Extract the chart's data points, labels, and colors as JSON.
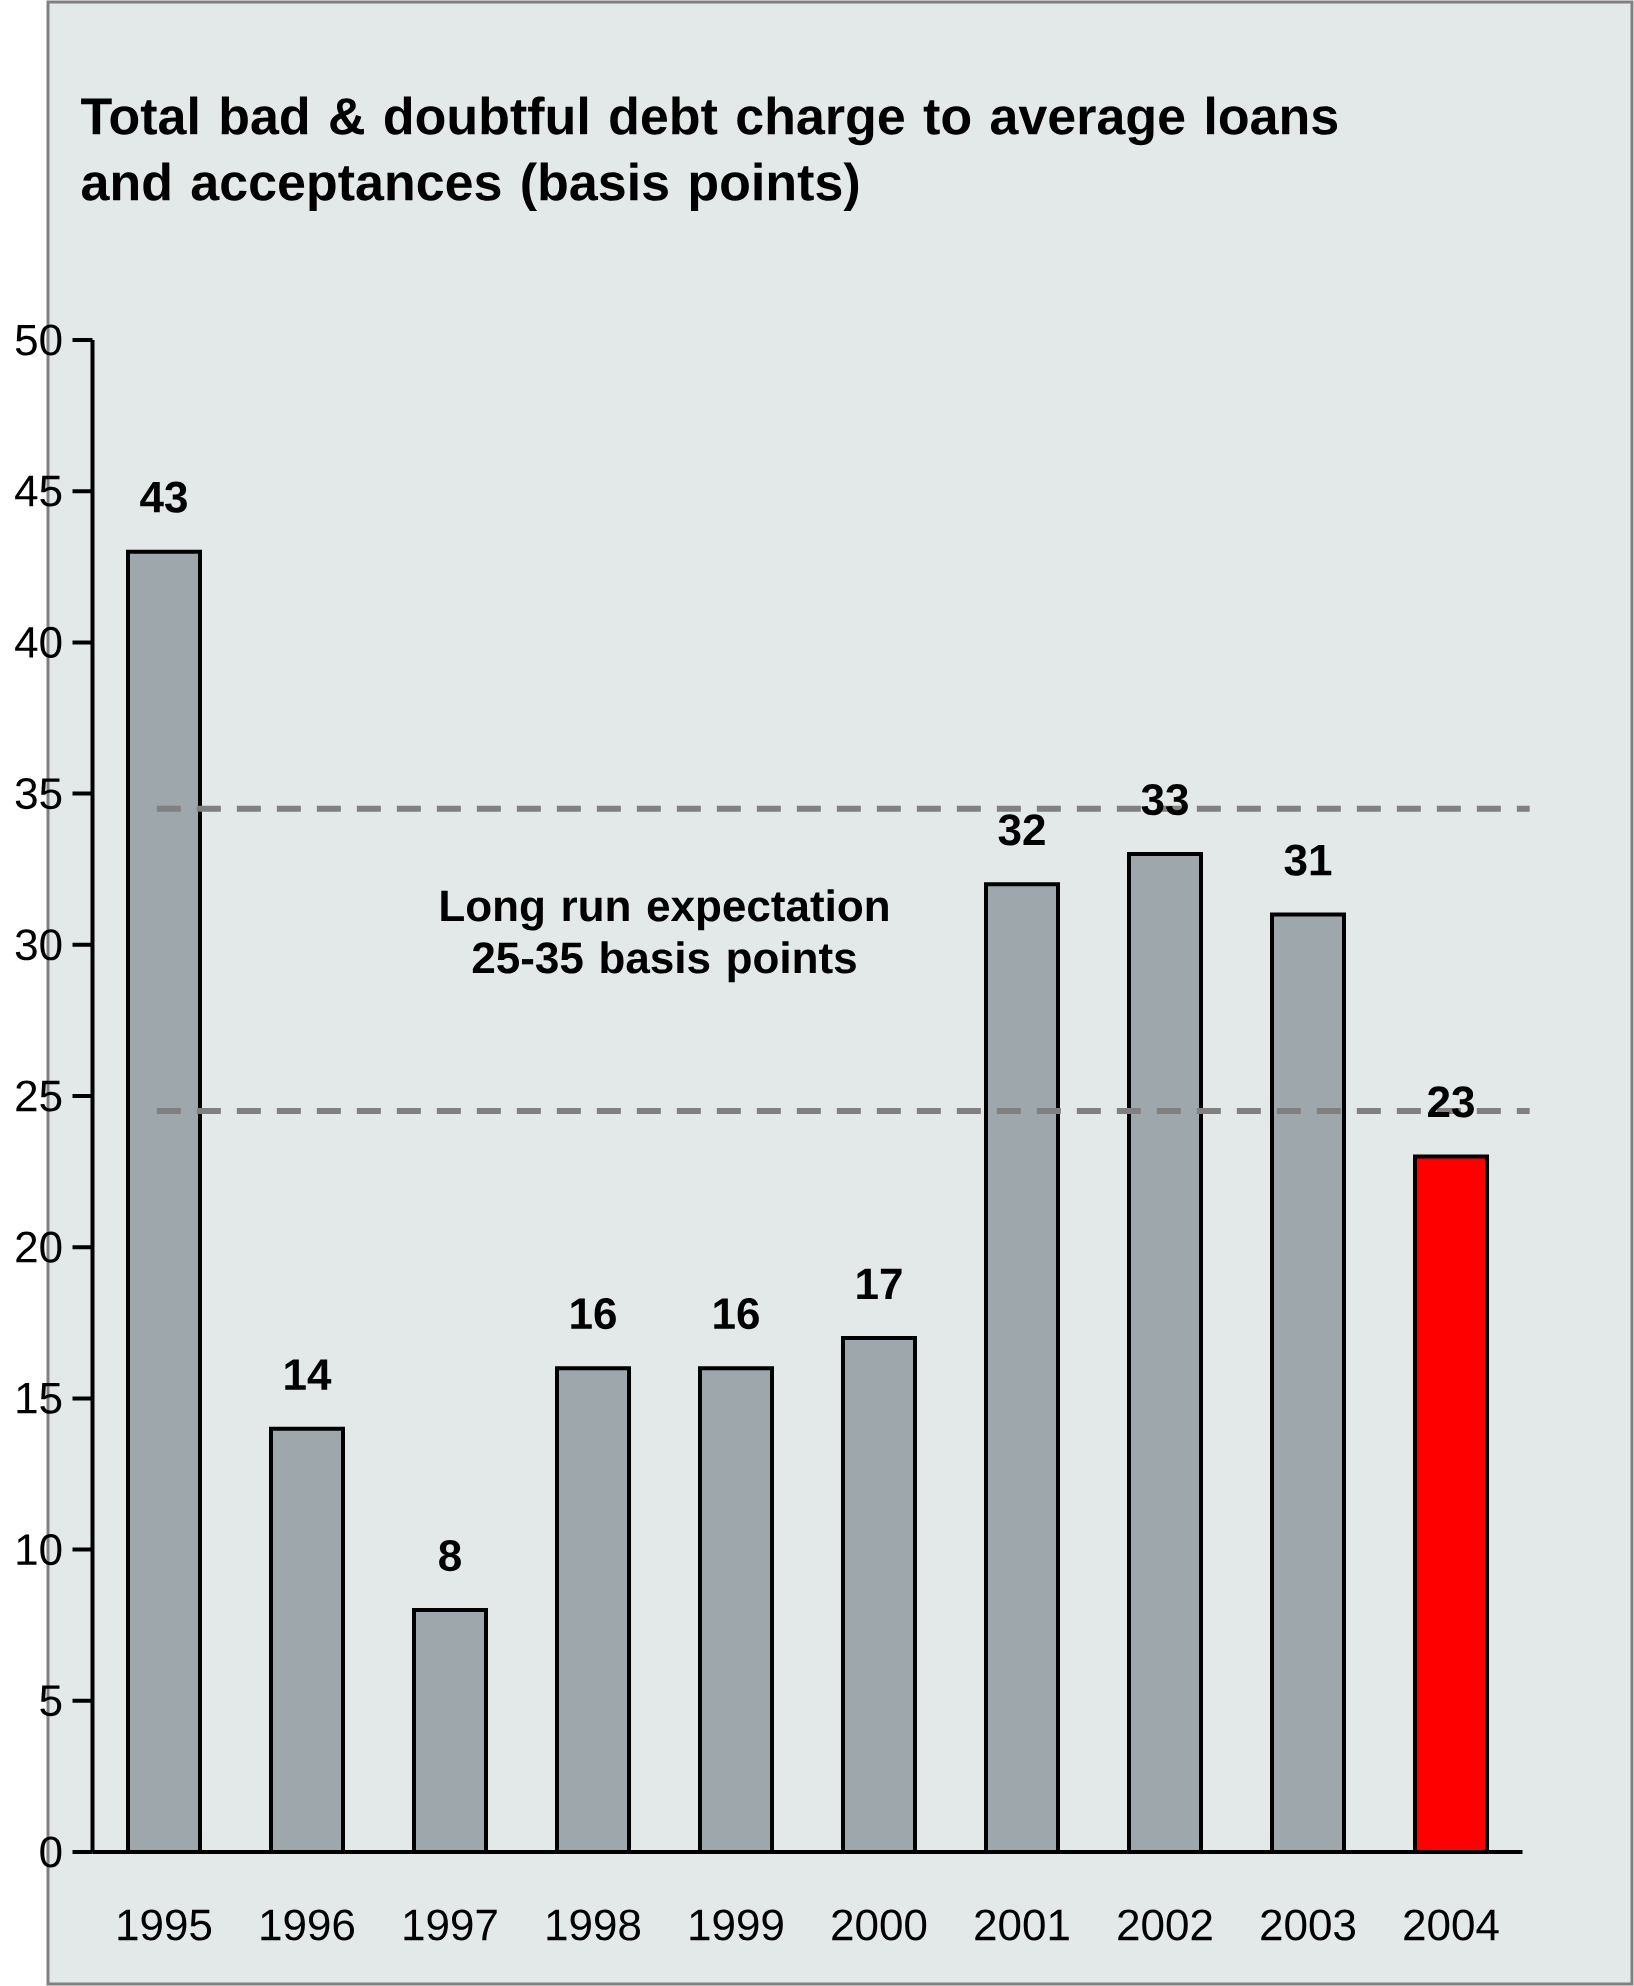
{
  "chart_data": {
    "type": "bar",
    "title": "Total bad & doubtful debt charge to average loans and acceptances (basis points)",
    "categories": [
      "1995",
      "1996",
      "1997",
      "1998",
      "1999",
      "2000",
      "2001",
      "2002",
      "2003",
      "2004"
    ],
    "values": [
      43,
      14,
      8,
      16,
      16,
      17,
      32,
      33,
      31,
      23
    ],
    "colors": [
      "#9ea7ab",
      "#9ea7ab",
      "#9ea7ab",
      "#9ea7ab",
      "#9ea7ab",
      "#9ea7ab",
      "#9ea7ab",
      "#9ea7ab",
      "#9ea7ab",
      "#ff0000"
    ],
    "data_labels": true,
    "ylim": [
      0,
      50
    ],
    "yticks": [
      0,
      5,
      10,
      15,
      20,
      25,
      30,
      35,
      40,
      45,
      50
    ],
    "ref_lines": [
      {
        "axis": "y",
        "value": 34.5,
        "color": "#808080",
        "line_style": "dashed"
      },
      {
        "axis": "y",
        "value": 24.5,
        "color": "#808080",
        "line_style": "dashed"
      }
    ],
    "annotations": [
      "Long run expectation 25-35 basis points"
    ]
  }
}
